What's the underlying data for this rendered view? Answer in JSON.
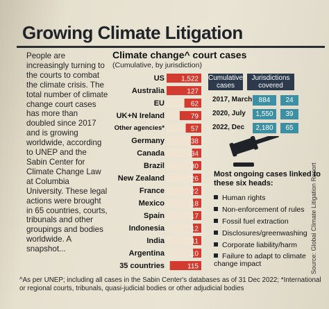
{
  "title": "Growing Climate Litigation",
  "intro": "People are increasingly turning to the courts to combat the climate crisis. The total number of climate change court cases has more than doubled since 2017 and is growing worldwide, according to UNEP and the Sabin Center for Climate Change Law at Columbia University. These legal actions were brought in 65 countries, courts, tribunals and other groupings and bodies worldwide. A snapshot...",
  "chart_data": {
    "type": "bar",
    "title": "Climate change^ court cases",
    "subtitle": "(Cumulative, by jurisdiction)",
    "categories": [
      "US",
      "Australia",
      "EU",
      "UK+N Ireland",
      "Other agencies*",
      "Germany",
      "Canada",
      "Brazil",
      "New Zealand",
      "France",
      "Mexico",
      "Spain",
      "Indonesia",
      "India",
      "Argentina",
      "35 countries"
    ],
    "values": [
      1522,
      127,
      62,
      79,
      57,
      38,
      34,
      30,
      26,
      22,
      18,
      17,
      12,
      11,
      10,
      115
    ],
    "value_labels": [
      "1,522",
      "127",
      "62",
      "79",
      "57",
      "38",
      "34",
      "30",
      "26",
      "22",
      "18",
      "17",
      "12",
      "11",
      "10",
      "115"
    ],
    "colors": {
      "bar": "#d23b2f",
      "track": "#efe3d2",
      "text": "#ffffff"
    }
  },
  "stats": {
    "headers": [
      "Cumulative cases",
      "Jurisdictions covered"
    ],
    "rows": [
      {
        "label": "2017, March",
        "cases": "884",
        "jurisdictions": "24"
      },
      {
        "label": "2020, July",
        "cases": "1,550",
        "jurisdictions": "39"
      },
      {
        "label": "2022, Dec",
        "cases": "2,180",
        "jurisdictions": "65"
      }
    ],
    "colors": {
      "header": "#2c3a4b",
      "cell": "#3d8fa3"
    }
  },
  "gavel_icon": "gavel-icon",
  "heads_title": "Most ongoing cases linked to these six heads:",
  "heads": [
    "Human rights",
    "Non-enforcement of rules",
    "Fossil fuel extraction",
    "Disclosures/greenwashing",
    "Corporate liability/harm",
    "Failure to adapt to climate change impact"
  ],
  "source": "Source: Global Climate Litigation Report",
  "footnote": "^As per UNEP; including all cases in the Sabin Center's databases as of 31 Dec 2022; *International or regional courts, tribunals, quasi-judicial bodies or other adjudicial bodies"
}
